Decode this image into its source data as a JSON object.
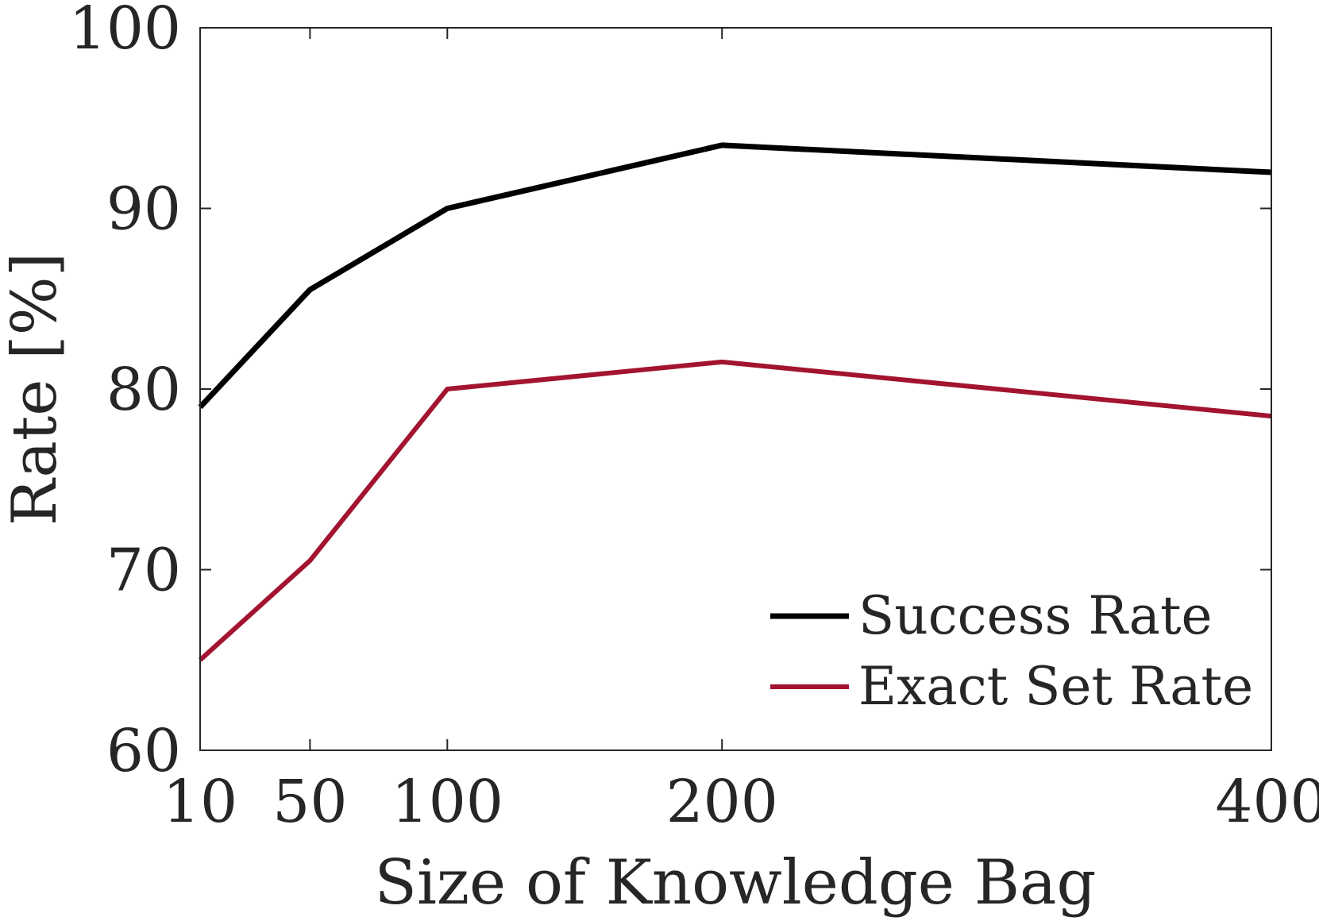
{
  "chart_data": {
    "type": "line",
    "x": [
      10,
      50,
      100,
      200,
      400
    ],
    "xticks": [
      "10",
      "50",
      "100",
      "200",
      "400"
    ],
    "yticks": [
      "60",
      "70",
      "80",
      "90",
      "100"
    ],
    "xlim": [
      10,
      400
    ],
    "ylim": [
      60,
      100
    ],
    "xlabel": "Size of Knowledge Bag",
    "ylabel": "Rate [%]",
    "title": "",
    "grid": false,
    "legend_position": "bottom-right",
    "series": [
      {
        "name": "Success Rate",
        "color": "#000000",
        "values": [
          79,
          85.5,
          90,
          93.5,
          92
        ]
      },
      {
        "name": "Exact Set Rate",
        "color": "#a2142f",
        "values": [
          65,
          70.5,
          80,
          81.5,
          78.5
        ]
      }
    ]
  }
}
